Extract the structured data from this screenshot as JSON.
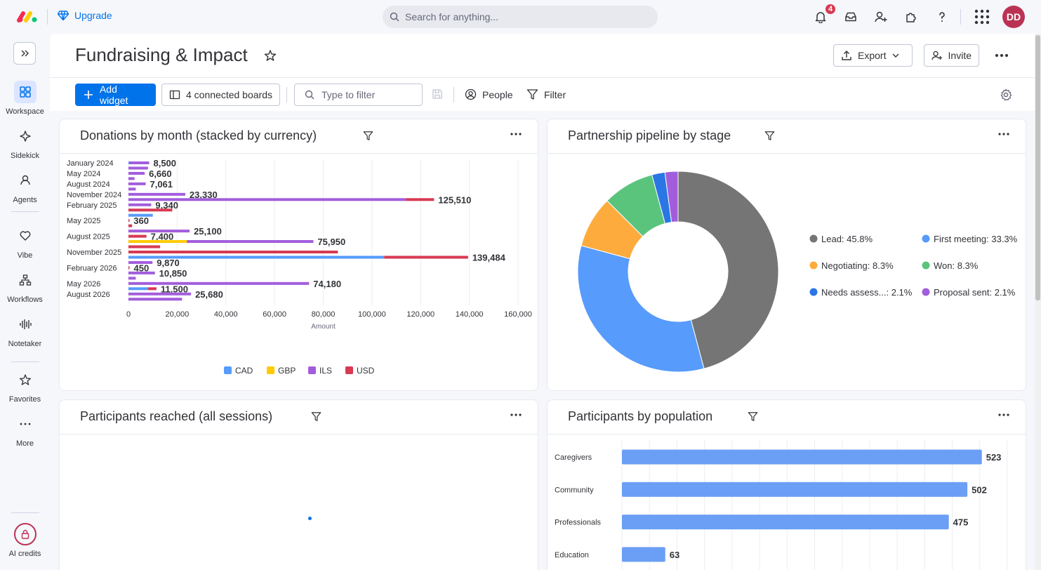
{
  "topbar": {
    "upgrade_label": "Upgrade",
    "search_placeholder": "Search for anything...",
    "notifications_count": "4",
    "avatar_initials": "DD"
  },
  "nav": {
    "items": [
      {
        "label": "Workspace",
        "icon": "grid-icon"
      },
      {
        "label": "Sidekick",
        "icon": "sparkle-icon"
      },
      {
        "label": "Agents",
        "icon": "agents-icon"
      },
      {
        "label": "Vibe",
        "icon": "heart-icon"
      },
      {
        "label": "Workflows",
        "icon": "workflow-icon"
      },
      {
        "label": "Notetaker",
        "icon": "waveform-icon"
      },
      {
        "label": "Favorites",
        "icon": "star-icon"
      },
      {
        "label": "More",
        "icon": "dots-icon"
      },
      {
        "label": "AI credits",
        "icon": "lock-icon"
      }
    ]
  },
  "header": {
    "title": "Fundraising & Impact",
    "export_label": "Export",
    "invite_label": "Invite"
  },
  "toolbar": {
    "add_widget_label": "Add widget",
    "connected_boards_label": "4 connected boards",
    "filter_placeholder": "Type to filter",
    "people_label": "People",
    "filter_label": "Filter"
  },
  "widgets": {
    "donations": {
      "title": "Donations by month (stacked by currency)",
      "chart_data": {
        "type": "bar",
        "orientation": "horizontal",
        "stacked": true,
        "category_labels": [
          "January 2024",
          "May 2024",
          "August 2024",
          "November 2024",
          "February 2025",
          "May 2025",
          "August 2025",
          "November 2025",
          "February 2026",
          "May 2026",
          "August 2026"
        ],
        "rows": [
          {
            "bars": [
              {
                "c": "CAD",
                "v": 300
              },
              {
                "c": "ILS",
                "v": 8200
              }
            ],
            "total": "8,500"
          },
          {
            "bars": [
              {
                "c": "ILS",
                "v": 8000
              }
            ]
          },
          {
            "bars": [
              {
                "c": "ILS",
                "v": 6660
              }
            ],
            "total": "6,660"
          },
          {
            "bars": [
              {
                "c": "ILS",
                "v": 2500
              }
            ]
          },
          {
            "bars": [
              {
                "c": "ILS",
                "v": 7061
              }
            ],
            "total": "7,061"
          },
          {
            "bars": [
              {
                "c": "ILS",
                "v": 3000
              }
            ]
          },
          {
            "bars": [
              {
                "c": "ILS",
                "v": 23330
              }
            ],
            "total": "23,330"
          },
          {
            "bars": [
              {
                "c": "ILS",
                "v": 114000
              },
              {
                "c": "USD",
                "v": 11510
              }
            ],
            "total": "125,510"
          },
          {
            "bars": [
              {
                "c": "ILS",
                "v": 9340
              }
            ],
            "total": "9,340"
          },
          {
            "bars": [
              {
                "c": "USD",
                "v": 18000
              }
            ]
          },
          {
            "bars": [
              {
                "c": "CAD",
                "v": 10000
              }
            ]
          },
          {
            "bars": [
              {
                "c": "USD",
                "v": 360
              }
            ],
            "total": "360"
          },
          {
            "bars": [
              {
                "c": "USD",
                "v": 1500
              }
            ]
          },
          {
            "bars": [
              {
                "c": "ILS",
                "v": 25100
              }
            ],
            "total": "25,100"
          },
          {
            "bars": [
              {
                "c": "USD",
                "v": 7400
              }
            ],
            "total": "7,400"
          },
          {
            "bars": [
              {
                "c": "GBP",
                "v": 24000
              },
              {
                "c": "ILS",
                "v": 51950
              }
            ],
            "total": "75,950"
          },
          {
            "bars": [
              {
                "c": "USD",
                "v": 13000
              }
            ]
          },
          {
            "bars": [
              {
                "c": "USD",
                "v": 86000
              }
            ]
          },
          {
            "bars": [
              {
                "c": "CAD",
                "v": 105000
              },
              {
                "c": "USD",
                "v": 34484
              }
            ],
            "total": "139,484"
          },
          {
            "bars": [
              {
                "c": "ILS",
                "v": 9870
              }
            ],
            "total": "9,870"
          },
          {
            "bars": [
              {
                "c": "USD",
                "v": 450
              }
            ],
            "total": "450"
          },
          {
            "bars": [
              {
                "c": "ILS",
                "v": 10850
              }
            ],
            "total": "10,850"
          },
          {
            "bars": [
              {
                "c": "ILS",
                "v": 3000
              }
            ]
          },
          {
            "bars": [
              {
                "c": "ILS",
                "v": 74180
              }
            ],
            "total": "74,180"
          },
          {
            "bars": [
              {
                "c": "CAD",
                "v": 8000
              },
              {
                "c": "USD",
                "v": 3500
              }
            ],
            "total": "11,500"
          },
          {
            "bars": [
              {
                "c": "ILS",
                "v": 25680
              }
            ],
            "total": "25,680"
          },
          {
            "bars": [
              {
                "c": "ILS",
                "v": 22000
              }
            ]
          }
        ],
        "label_rows": [
          0,
          2,
          4,
          6,
          8,
          11,
          14,
          17,
          20,
          23,
          25
        ],
        "xlim": [
          0,
          160000
        ],
        "ticks": [
          "0",
          "20,000",
          "40,000",
          "60,000",
          "80,000",
          "100,000",
          "120,000",
          "140,000",
          "160,000"
        ],
        "xlabel": "Amount",
        "legend": [
          {
            "name": "CAD",
            "color": "#579bfc"
          },
          {
            "name": "GBP",
            "color": "#ffcb00"
          },
          {
            "name": "ILS",
            "color": "#a25ddc"
          },
          {
            "name": "USD",
            "color": "#d83a52"
          }
        ]
      }
    },
    "pipeline": {
      "title": "Partnership pipeline by stage",
      "chart_data": {
        "type": "pie",
        "donut": true,
        "slices": [
          {
            "name": "Lead",
            "value": 45.8,
            "label": "Lead: 45.8%",
            "color": "#757575"
          },
          {
            "name": "First meeting",
            "value": 33.3,
            "label": "First meeting: 33.3%",
            "color": "#579bfc"
          },
          {
            "name": "Negotiating",
            "value": 8.3,
            "label": "Negotiating: 8.3%",
            "color": "#fdab3d"
          },
          {
            "name": "Won",
            "value": 8.3,
            "label": "Won: 8.3%",
            "color": "#5ac47d"
          },
          {
            "name": "Needs assess...",
            "value": 2.1,
            "label": "Needs assess...: 2.1%",
            "color": "#2b76e5"
          },
          {
            "name": "Proposal sent",
            "value": 2.1,
            "label": "Proposal sent: 2.1%",
            "color": "#a25ddc"
          }
        ],
        "legend_placement": "right"
      }
    },
    "participants": {
      "title": "Participants reached (all sessions)"
    },
    "population": {
      "title": "Participants by population",
      "chart_data": {
        "type": "bar",
        "orientation": "horizontal",
        "categories": [
          "Caregivers",
          "Community",
          "Professionals",
          "Education"
        ],
        "values": [
          523,
          502,
          475,
          63
        ],
        "max": 560,
        "color": "#6b9ef5"
      }
    }
  }
}
